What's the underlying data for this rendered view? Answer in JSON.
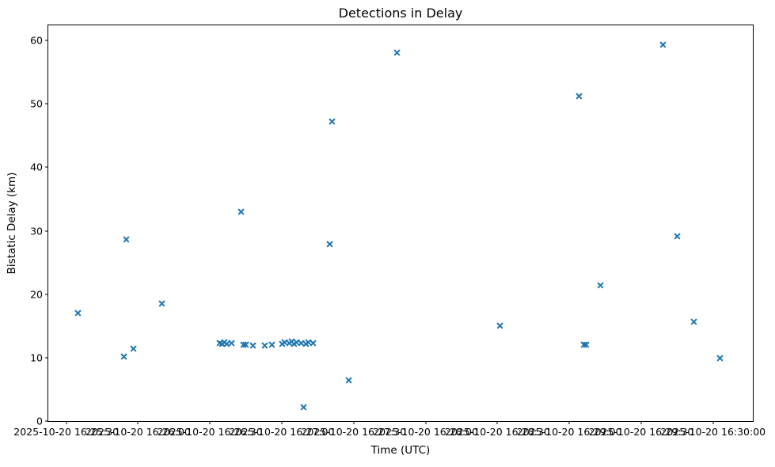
{
  "chart_data": {
    "type": "scatter",
    "title": "Detections in Delay",
    "xlabel": "Time (UTC)",
    "ylabel": "Bistatic Delay (km)",
    "legend": "none",
    "grid": false,
    "marker": "x",
    "marker_color": "#1f77b4",
    "x_date": "2025-10-20",
    "xlim": [
      "16:25:22.5",
      "16:30:16.6"
    ],
    "ylim": [
      0,
      62.4
    ],
    "x_ticks": [
      "16:25:30",
      "16:26:00",
      "16:26:30",
      "16:27:00",
      "16:27:30",
      "16:28:00",
      "16:28:30",
      "16:29:00",
      "16:29:30",
      "16:30:00"
    ],
    "y_ticks": [
      0,
      10,
      20,
      30,
      40,
      50,
      60
    ],
    "points": [
      {
        "t": "16:25:35",
        "y": 17.0
      },
      {
        "t": "16:25:54",
        "y": 10.2
      },
      {
        "t": "16:25:55",
        "y": 28.6
      },
      {
        "t": "16:25:58",
        "y": 11.4
      },
      {
        "t": "16:26:10",
        "y": 18.6
      },
      {
        "t": "16:26:34",
        "y": 12.3
      },
      {
        "t": "16:26:35",
        "y": 12.2
      },
      {
        "t": "16:26:36",
        "y": 12.4
      },
      {
        "t": "16:26:37",
        "y": 12.2
      },
      {
        "t": "16:26:39",
        "y": 12.3
      },
      {
        "t": "16:26:43",
        "y": 33.0
      },
      {
        "t": "16:26:44",
        "y": 12.0
      },
      {
        "t": "16:26:45",
        "y": 12.1
      },
      {
        "t": "16:26:48",
        "y": 11.9
      },
      {
        "t": "16:26:53",
        "y": 11.9
      },
      {
        "t": "16:26:56",
        "y": 12.0
      },
      {
        "t": "16:27:00",
        "y": 12.2
      },
      {
        "t": "16:27:01",
        "y": 12.4
      },
      {
        "t": "16:27:03",
        "y": 12.3
      },
      {
        "t": "16:27:04",
        "y": 12.5
      },
      {
        "t": "16:27:05",
        "y": 12.2
      },
      {
        "t": "16:27:06",
        "y": 12.4
      },
      {
        "t": "16:27:08",
        "y": 12.3
      },
      {
        "t": "16:27:09",
        "y": 2.2
      },
      {
        "t": "16:27:10",
        "y": 12.2
      },
      {
        "t": "16:27:11",
        "y": 12.4
      },
      {
        "t": "16:27:13",
        "y": 12.3
      },
      {
        "t": "16:27:20",
        "y": 27.9
      },
      {
        "t": "16:27:21",
        "y": 47.3
      },
      {
        "t": "16:27:28",
        "y": 6.5
      },
      {
        "t": "16:27:48",
        "y": 58.1
      },
      {
        "t": "16:28:31",
        "y": 15.0
      },
      {
        "t": "16:29:04",
        "y": 51.2
      },
      {
        "t": "16:29:06",
        "y": 12.1
      },
      {
        "t": "16:29:07",
        "y": 12.1
      },
      {
        "t": "16:29:13",
        "y": 21.4
      },
      {
        "t": "16:29:39",
        "y": 59.3
      },
      {
        "t": "16:29:45",
        "y": 29.1
      },
      {
        "t": "16:29:52",
        "y": 15.7
      },
      {
        "t": "16:30:03",
        "y": 10.0
      }
    ]
  }
}
